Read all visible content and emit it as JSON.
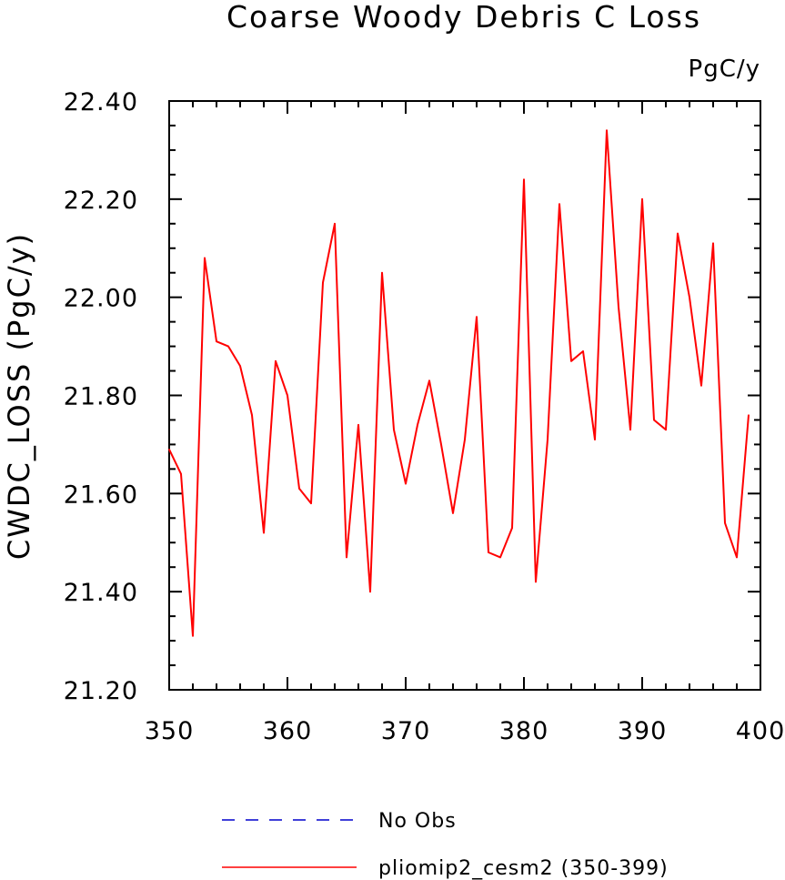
{
  "chart_data": {
    "type": "line",
    "title": "Coarse Woody Debris C Loss",
    "units": "PgC/y",
    "ylabel": "CWDC_LOSS  (PgC/y)",
    "xlabel": "",
    "xlim": [
      350,
      400
    ],
    "ylim": [
      21.2,
      22.4
    ],
    "x_ticks": [
      "350",
      "360",
      "370",
      "380",
      "390",
      "400"
    ],
    "y_ticks": [
      "21.20",
      "21.40",
      "21.60",
      "21.80",
      "22.00",
      "22.20",
      "22.40"
    ],
    "grid": false,
    "legend_placement": "bottom",
    "series": [
      {
        "name": "No Obs",
        "color": "#0000cc",
        "dash": "dashed",
        "x": [],
        "values": []
      },
      {
        "name": "pliomip2_cesm2 (350-399)",
        "color": "#ff0000",
        "dash": "solid",
        "x": [
          350,
          351,
          352,
          353,
          354,
          355,
          356,
          357,
          358,
          359,
          360,
          361,
          362,
          363,
          364,
          365,
          366,
          367,
          368,
          369,
          370,
          371,
          372,
          373,
          374,
          375,
          376,
          377,
          378,
          379,
          380,
          381,
          382,
          383,
          384,
          385,
          386,
          387,
          388,
          389,
          390,
          391,
          392,
          393,
          394,
          395,
          396,
          397,
          398,
          399
        ],
        "values": [
          21.69,
          21.64,
          21.31,
          22.08,
          21.91,
          21.9,
          21.86,
          21.76,
          21.52,
          21.87,
          21.8,
          21.61,
          21.58,
          22.03,
          22.15,
          21.47,
          21.74,
          21.4,
          22.05,
          21.73,
          21.62,
          21.74,
          21.83,
          21.7,
          21.56,
          21.71,
          21.96,
          21.48,
          21.47,
          21.53,
          22.24,
          21.42,
          21.71,
          22.19,
          21.87,
          21.89,
          21.71,
          22.34,
          21.98,
          21.73,
          22.2,
          21.75,
          21.73,
          22.13,
          22.0,
          21.82,
          22.11,
          21.54,
          21.47,
          21.76
        ]
      }
    ]
  }
}
